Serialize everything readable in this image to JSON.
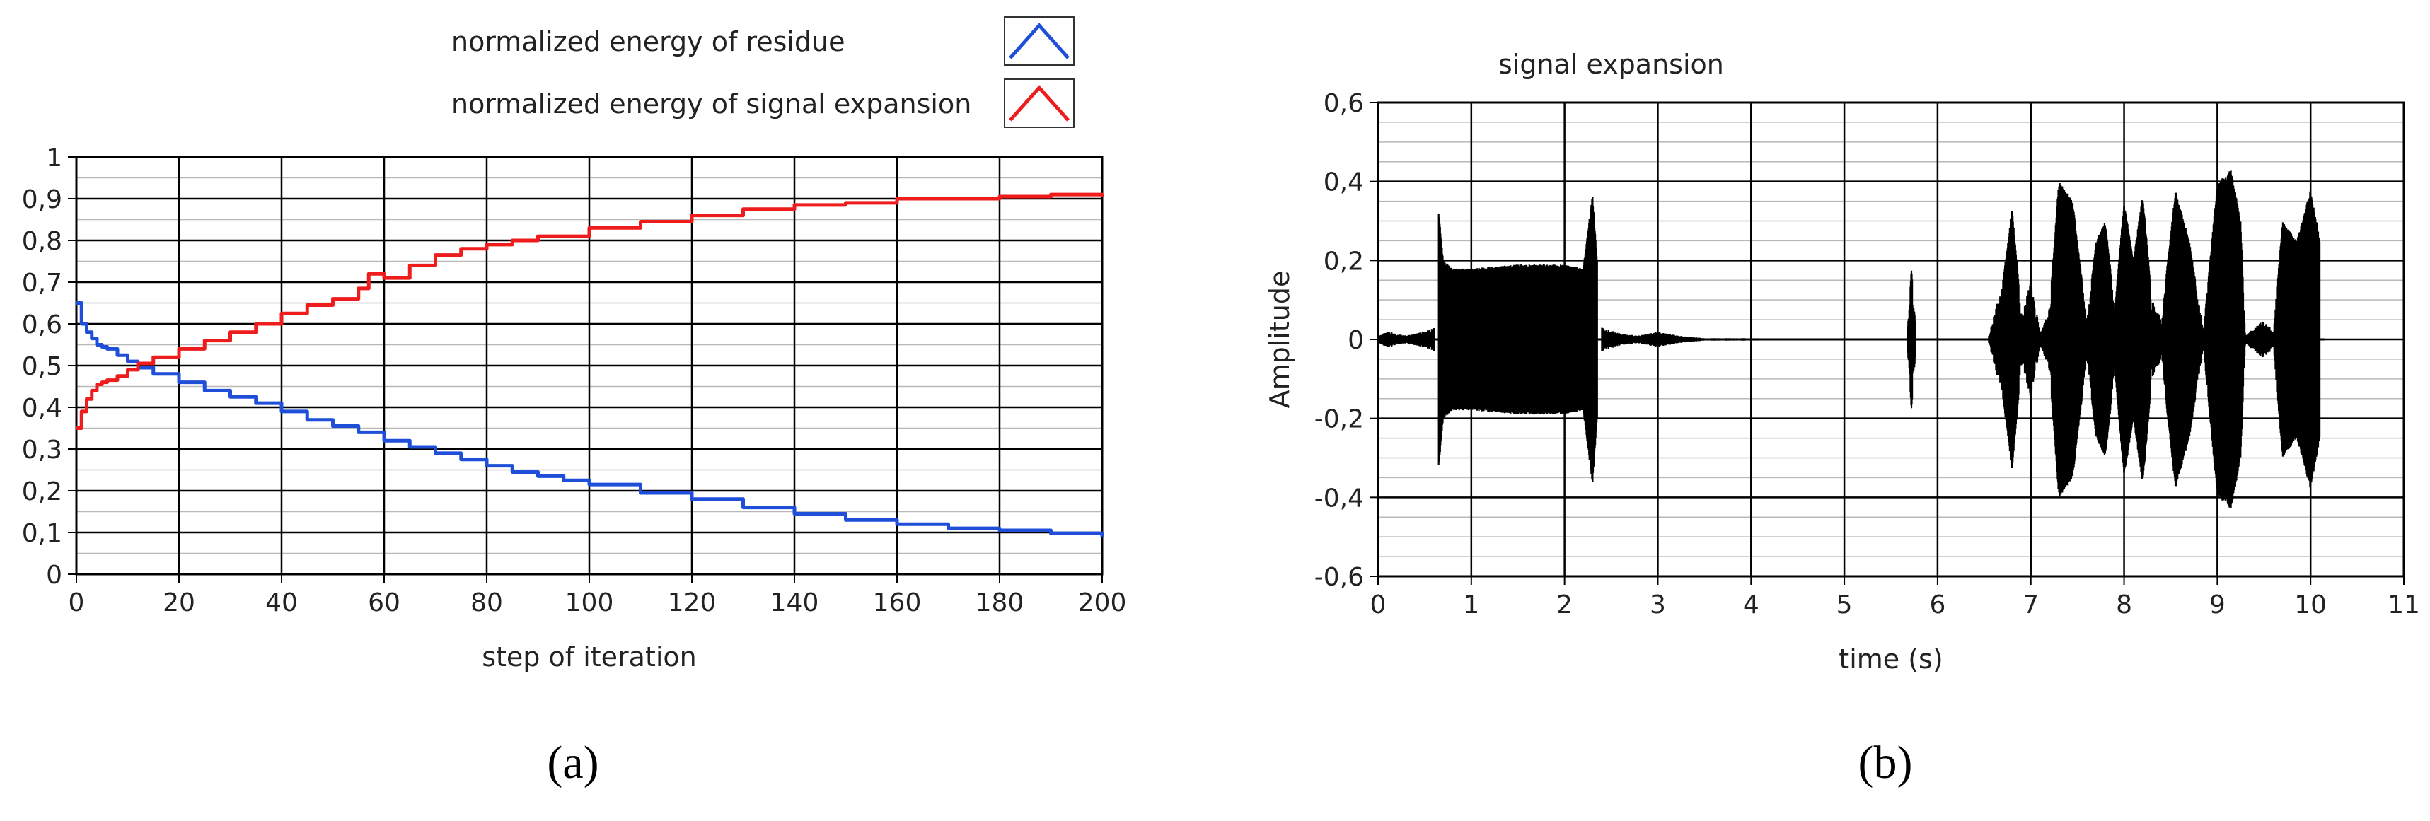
{
  "panel_labels": {
    "a": "(a)",
    "b": "(b)"
  },
  "chart_data": [
    {
      "id": "a",
      "type": "line",
      "title": "",
      "xlabel": "step of iteration",
      "ylabel": "",
      "xlim": [
        0,
        200
      ],
      "ylim": [
        0,
        1
      ],
      "xticks": [
        "0",
        "20",
        "40",
        "60",
        "80",
        "100",
        "120",
        "140",
        "160",
        "180",
        "200"
      ],
      "yticks": [
        "0",
        "0,1",
        "0,2",
        "0,3",
        "0,4",
        "0,5",
        "0,6",
        "0,7",
        "0,8",
        "0,9",
        "1"
      ],
      "grid": true,
      "legend_position": "top-right, above plot",
      "series": [
        {
          "name": "normalized energy of residue",
          "color": "#1f4fd8",
          "x": [
            0,
            1,
            2,
            3,
            4,
            5,
            6,
            8,
            10,
            12,
            15,
            20,
            25,
            30,
            35,
            40,
            45,
            50,
            55,
            60,
            65,
            70,
            75,
            80,
            85,
            90,
            95,
            100,
            110,
            120,
            130,
            140,
            150,
            160,
            170,
            180,
            190,
            200
          ],
          "y": [
            0.65,
            0.6,
            0.58,
            0.565,
            0.55,
            0.545,
            0.54,
            0.525,
            0.51,
            0.495,
            0.48,
            0.46,
            0.44,
            0.425,
            0.41,
            0.39,
            0.37,
            0.355,
            0.34,
            0.32,
            0.305,
            0.29,
            0.275,
            0.26,
            0.245,
            0.235,
            0.225,
            0.215,
            0.195,
            0.18,
            0.16,
            0.145,
            0.13,
            0.12,
            0.11,
            0.105,
            0.098,
            0.09
          ]
        },
        {
          "name": "normalized energy of signal expansion",
          "color": "#ee1c1c",
          "x": [
            0,
            1,
            2,
            3,
            4,
            5,
            6,
            8,
            10,
            12,
            15,
            20,
            25,
            30,
            35,
            40,
            45,
            50,
            55,
            57,
            60,
            65,
            70,
            75,
            80,
            85,
            90,
            95,
            100,
            110,
            120,
            130,
            140,
            150,
            160,
            170,
            180,
            190,
            200
          ],
          "y": [
            0.35,
            0.39,
            0.42,
            0.44,
            0.455,
            0.46,
            0.465,
            0.475,
            0.49,
            0.505,
            0.52,
            0.54,
            0.56,
            0.58,
            0.6,
            0.625,
            0.645,
            0.66,
            0.685,
            0.72,
            0.71,
            0.74,
            0.765,
            0.78,
            0.79,
            0.8,
            0.81,
            0.81,
            0.83,
            0.845,
            0.86,
            0.875,
            0.885,
            0.89,
            0.9,
            0.9,
            0.905,
            0.91,
            0.905
          ]
        }
      ]
    },
    {
      "id": "b",
      "type": "line",
      "title": "signal expansion",
      "xlabel": "time (s)",
      "ylabel": "Amplitude",
      "xlim": [
        0,
        11
      ],
      "ylim": [
        -0.6,
        0.6
      ],
      "xticks": [
        "0",
        "1",
        "2",
        "3",
        "4",
        "5",
        "6",
        "7",
        "8",
        "9",
        "10",
        "11"
      ],
      "yticks": [
        "-0,6",
        "-0,4",
        "-0,2",
        "0",
        "0,2",
        "0,4",
        "0,6"
      ],
      "grid": true,
      "envelope_segments": [
        {
          "t": [
            0,
            0.1,
            0.3,
            0.5,
            0.6
          ],
          "amp": [
            0.01,
            0.02,
            0.01,
            0.02,
            0.03
          ]
        },
        {
          "t": [
            0.65,
            0.7,
            0.8,
            1.0,
            1.5,
            2.0,
            2.2,
            2.3,
            2.35
          ],
          "amp": [
            0.33,
            0.2,
            0.18,
            0.18,
            0.19,
            0.19,
            0.18,
            0.37,
            0.2
          ]
        },
        {
          "t": [
            2.4,
            2.6,
            2.8,
            3.0,
            3.2,
            3.5,
            4.0,
            4.35
          ],
          "amp": [
            0.03,
            0.015,
            0.01,
            0.02,
            0.01,
            0.003,
            0.003,
            0.002
          ]
        },
        {
          "t": [
            5.68,
            5.72,
            5.76
          ],
          "amp": [
            0.05,
            0.18,
            0.05
          ]
        },
        {
          "t": [
            6.55,
            6.7,
            6.8,
            6.9,
            7.0,
            7.1,
            7.2,
            7.3,
            7.45,
            7.6,
            7.7,
            7.8,
            7.9,
            8.0,
            8.1,
            8.2,
            8.3,
            8.4,
            8.55,
            8.7,
            8.85,
            9.0,
            9.15,
            9.25,
            9.3,
            9.5,
            9.6,
            9.7,
            9.85,
            10.0,
            10.1
          ],
          "amp": [
            0.01,
            0.15,
            0.33,
            0.07,
            0.15,
            0.02,
            0.08,
            0.4,
            0.35,
            0.05,
            0.25,
            0.3,
            0.08,
            0.35,
            0.2,
            0.37,
            0.1,
            0.05,
            0.38,
            0.25,
            0.02,
            0.4,
            0.43,
            0.3,
            0.01,
            0.05,
            0.02,
            0.3,
            0.25,
            0.38,
            0.25
          ]
        }
      ]
    }
  ]
}
